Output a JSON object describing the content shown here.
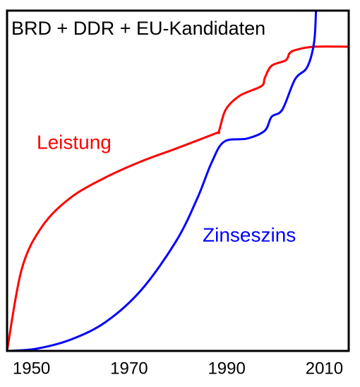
{
  "chart_data": {
    "type": "line",
    "title": "BRD + DDR + EU-Kandidaten",
    "xlim": [
      1945,
      2015
    ],
    "ylim": [
      0,
      100
    ],
    "xticks": [
      1950,
      1970,
      1990,
      2010
    ],
    "series": [
      {
        "name": "Leistung",
        "color": "#ff0000",
        "x": [
          1945,
          1948,
          1952.2,
          1958,
          1965.2,
          1972.5,
          1979.7,
          1987.7,
          1988.4,
          1989.8,
          1992.7,
          1997.1,
          1997.8,
          1999.2,
          2002.1,
          2002.9,
          2004.3,
          2007.9,
          2015
        ],
        "values": [
          0,
          24,
          36.6,
          45,
          51,
          55.7,
          59.5,
          63.9,
          64.5,
          70.9,
          75,
          77.8,
          80.2,
          83.8,
          85.4,
          87.5,
          88.5,
          89.4,
          89.4
        ]
      },
      {
        "name": "Zinseszins",
        "color": "#0000ff",
        "x": [
          1945,
          1950.8,
          1958,
          1965.2,
          1972.5,
          1979.7,
          1984,
          1986.9,
          1989.5,
          1994.2,
          1997.8,
          1999.2,
          2001.4,
          2004,
          2006.5,
          2007.9,
          2008.3
        ],
        "values": [
          0,
          0.6,
          3.3,
          8.5,
          17.9,
          32.4,
          44.9,
          55.3,
          61.5,
          62.4,
          64.7,
          68.8,
          70.9,
          79.8,
          83.4,
          90.6,
          100
        ]
      }
    ]
  }
}
